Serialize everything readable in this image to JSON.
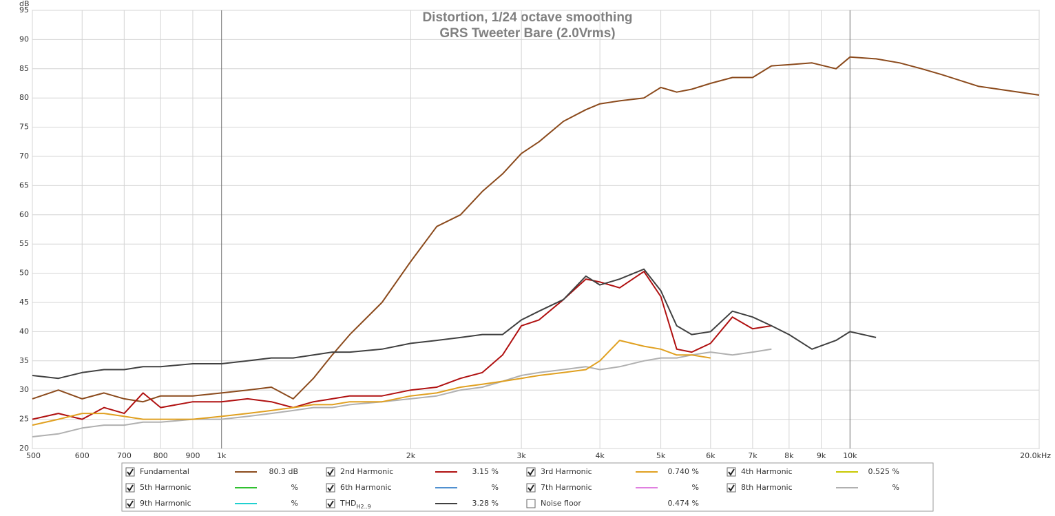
{
  "chart_data": {
    "type": "line",
    "title": "Distortion, 1/24 octave smoothing",
    "subtitle": "GRS Tweeter Bare (2.0Vrms)",
    "y_label": "dB",
    "log_x": true,
    "grid": true,
    "xlim": [
      500,
      20000
    ],
    "ylim": [
      20,
      95
    ],
    "yticks": [
      20,
      25,
      30,
      35,
      40,
      45,
      50,
      55,
      60,
      65,
      70,
      75,
      80,
      85,
      90,
      95
    ],
    "xticks": [
      500,
      600,
      700,
      800,
      900,
      {
        "value": 1000,
        "label": "1k"
      },
      {
        "value": 2000,
        "label": "2k"
      },
      {
        "value": 3000,
        "label": "3k"
      },
      {
        "value": 4000,
        "label": "4k"
      },
      {
        "value": 5000,
        "label": "5k"
      },
      {
        "value": 6000,
        "label": "6k"
      },
      {
        "value": 7000,
        "label": "7k"
      },
      {
        "value": 8000,
        "label": "8k"
      },
      {
        "value": 9000,
        "label": "9k"
      },
      {
        "value": 10000,
        "label": "10k"
      },
      {
        "value": 20000,
        "label": "20.0kHz"
      }
    ],
    "x": [
      500,
      550,
      600,
      650,
      700,
      750,
      800,
      900,
      1000,
      1100,
      1200,
      1300,
      1400,
      1500,
      1600,
      1800,
      2000,
      2200,
      2400,
      2600,
      2800,
      3000,
      3200,
      3500,
      3800,
      4000,
      4300,
      4700,
      5000,
      5300,
      5600,
      6000,
      6500,
      7000,
      7500,
      8000,
      8700,
      9500,
      10000,
      11000,
      12000,
      13000,
      14000,
      16000,
      18000,
      20000
    ],
    "series": [
      {
        "name": "Fundamental",
        "color": "#8b4a1c",
        "readout": "80.3 dB",
        "checked": true,
        "values": [
          28.5,
          30,
          28.5,
          29.5,
          28.5,
          28,
          29,
          29,
          29.5,
          30,
          30.5,
          28.5,
          32,
          36,
          39.5,
          45,
          52,
          58,
          60,
          64,
          67,
          70.5,
          72.5,
          76,
          78,
          79,
          79.5,
          80,
          81.8,
          81,
          81.5,
          82.5,
          83.5,
          83.5,
          85.5,
          85.7,
          86,
          85,
          87,
          86.7,
          86,
          85,
          84,
          82,
          81.2,
          80.5
        ]
      },
      {
        "name": "2nd Harmonic",
        "color": "#b01010",
        "readout": "3.15 %",
        "checked": true,
        "values": [
          25,
          26,
          25,
          27,
          26,
          29.5,
          27,
          28,
          28,
          28.5,
          28,
          27,
          28,
          28.5,
          29,
          29,
          30,
          30.5,
          32,
          33,
          36,
          41,
          42,
          45.5,
          49,
          48.5,
          47.5,
          50.3,
          46,
          37,
          36.5,
          38,
          42.5,
          40.5,
          41,
          null,
          null,
          null,
          null,
          null,
          null,
          null,
          null,
          null,
          null,
          null
        ]
      },
      {
        "name": "3rd Harmonic",
        "color": "#e0a020",
        "readout": "0.740 %",
        "checked": true,
        "values": [
          24,
          25,
          26,
          26,
          25.5,
          25,
          25,
          25,
          25.5,
          26,
          26.5,
          27,
          27.5,
          27.5,
          28,
          28,
          29,
          29.5,
          30.5,
          31,
          31.5,
          32,
          32.5,
          33,
          33.5,
          35,
          38.5,
          37.5,
          37,
          36,
          36,
          35.5,
          null,
          null,
          null,
          null,
          null,
          null,
          null,
          null,
          null,
          null,
          null,
          null,
          null,
          null
        ]
      },
      {
        "name": "4th Harmonic",
        "color": "#c8c800",
        "readout": "0.525 %",
        "checked": true
      },
      {
        "name": "5th Harmonic",
        "color": "#30c030",
        "readout": "%",
        "checked": true
      },
      {
        "name": "6th Harmonic",
        "color": "#5090d0",
        "readout": "%",
        "checked": true
      },
      {
        "name": "7th Harmonic",
        "color": "#e080e0",
        "readout": "%",
        "checked": true
      },
      {
        "name": "8th Harmonic",
        "color": "#b0b0b0",
        "readout": "%",
        "checked": true,
        "values": [
          22,
          22.5,
          23.5,
          24,
          24,
          24.5,
          24.5,
          25,
          25,
          25.5,
          26,
          26.5,
          27,
          27,
          27.5,
          28,
          28.5,
          29,
          30,
          30.5,
          31.5,
          32.5,
          33,
          33.5,
          34,
          33.5,
          34,
          35,
          35.5,
          35.5,
          36,
          36.5,
          36,
          36.5,
          37,
          null,
          null,
          null,
          null,
          null,
          null,
          null,
          null,
          null,
          null,
          null
        ]
      },
      {
        "name": "9th Harmonic",
        "color": "#20d0d0",
        "readout": "%",
        "checked": true
      },
      {
        "name": "THD",
        "name_sub": "H2..9",
        "color": "#404040",
        "readout": "3.28 %",
        "checked": true,
        "values": [
          32.5,
          32,
          33,
          33.5,
          33.5,
          34,
          34,
          34.5,
          34.5,
          35,
          35.5,
          35.5,
          36,
          36.5,
          36.5,
          37,
          38,
          38.5,
          39,
          39.5,
          39.5,
          42,
          43.5,
          45.5,
          49.5,
          48,
          49,
          50.7,
          47,
          41,
          39.5,
          40,
          43.5,
          42.5,
          41,
          39.5,
          37,
          38.5,
          40,
          39,
          null,
          null,
          null,
          null,
          null,
          null
        ]
      },
      {
        "name": "Noise floor",
        "readout": "0.474 %",
        "checked": false
      }
    ]
  }
}
